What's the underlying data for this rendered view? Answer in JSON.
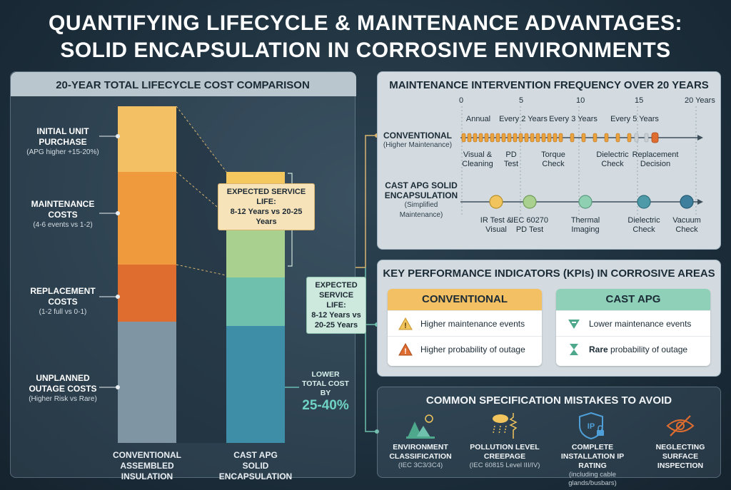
{
  "title": {
    "line1": "QUANTIFYING LIFECYCLE & MAINTENANCE ADVANTAGES:",
    "line2": "SOLID ENCAPSULATION IN CORROSIVE ENVIRONMENTS"
  },
  "cost_comparison": {
    "title": "20-YEAR TOTAL LIFECYCLE COST COMPARISON",
    "categories": [
      {
        "label": "INITIAL UNIT PURCHASE",
        "sub": "(APG higher +15-20%)"
      },
      {
        "label": "MAINTENANCE COSTS",
        "sub": "(4-6 events vs 1-2)"
      },
      {
        "label": "REPLACEMENT COSTS",
        "sub": "(1-2 full vs 0-1)"
      },
      {
        "label": "UNPLANNED OUTAGE COSTS",
        "sub": "(Higher Risk vs Rare)"
      }
    ],
    "callout_conventional": {
      "title": "EXPECTED SERVICE LIFE:",
      "value": "8-12 Years vs 20-25 Years"
    },
    "callout_apg": {
      "title": "EXPECTED SERVICE LIFE:",
      "value": "8-12 Years vs 20-25 Years"
    },
    "savings": {
      "label": "LOWER TOTAL COST BY",
      "value": "25-40%"
    },
    "x_labels": [
      {
        "line1": "CONVENTIONAL",
        "line2": "ASSEMBLED INSULATION"
      },
      {
        "line1": "CAST APG",
        "line2": "SOLID ENCAPSULATION"
      }
    ],
    "colors": {
      "initial": "#f3c063",
      "maintenance": "#ef9a3d",
      "replacement": "#e06d30",
      "outage": "#7f95a4",
      "apg_initial": "#f5c75f",
      "apg_maintenance": "#a9d08f",
      "apg_replacement": "#6fc0ad",
      "apg_outage": "#3e8ea8"
    }
  },
  "maintenance_frequency": {
    "title": "MAINTENANCE INTERVENTION FREQUENCY OVER 20 YEARS",
    "ticks": [
      "0",
      "5",
      "10",
      "15",
      "20 Years"
    ],
    "conventional": {
      "label": "CONVENTIONAL",
      "sub": "(Higher Maintenance)",
      "intervals": [
        "Annual",
        "Every 2 Years",
        "Every 3 Years",
        "Every 5 Years"
      ],
      "events": [
        "Visual & Cleaning",
        "PD Test",
        "Torque Check",
        "Dielectric Check",
        "Replacement Decision"
      ]
    },
    "apg": {
      "label": "CAST APG SOLID ENCAPSULATION",
      "sub": "(Simplified Maintenance)",
      "events": [
        "IR Test & Visual",
        "IEC 60270 PD Test",
        "Thermal Imaging",
        "Dielectric Check",
        "Vacuum Check"
      ]
    }
  },
  "kpi": {
    "title": "KEY PERFORMANCE INDICATORS (KPIs) IN CORROSIVE AREAS",
    "conventional": {
      "header": "CONVENTIONAL",
      "row1": "Higher maintenance events",
      "row2": "Higher probability of outage"
    },
    "apg": {
      "header": "CAST APG",
      "row1": "Lower maintenance events",
      "row2_bold": "Rare",
      "row2_rest": " probability of outage"
    }
  },
  "spec_mistakes": {
    "title": "COMMON SPECIFICATION MISTAKES TO AVOID",
    "items": [
      {
        "label": "ENVIRONMENT CLASSIFICATION",
        "sub": "(IEC 3C3/3C4)",
        "icon": "landscape-sun-icon"
      },
      {
        "label": "POLLUTION LEVEL CREEPAGE",
        "sub": "(IEC 60815 Level III/IV)",
        "icon": "cloud-rain-resistor-icon"
      },
      {
        "label": "COMPLETE INSTALLATION IP RATING",
        "sub": "(including cable glands/busbars)",
        "icon": "ip-shield-lock-icon"
      },
      {
        "label": "NEGLECTING SURFACE INSPECTION",
        "sub": "",
        "icon": "eye-slash-icon"
      }
    ]
  }
}
